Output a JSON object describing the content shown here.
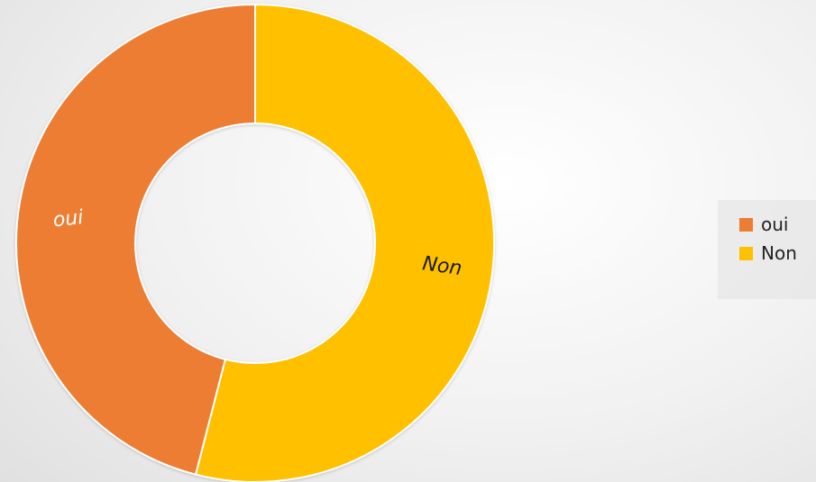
{
  "chart_data": {
    "type": "pie",
    "variant": "doughnut",
    "categories": [
      "oui",
      "Non"
    ],
    "values": [
      46,
      54
    ],
    "colors": [
      "#ED7D31",
      "#FFC000"
    ],
    "title": "",
    "data_labels": [
      "oui",
      "Non"
    ],
    "legend": {
      "position": "right",
      "entries": [
        "oui",
        "Non"
      ]
    },
    "grid": false
  }
}
